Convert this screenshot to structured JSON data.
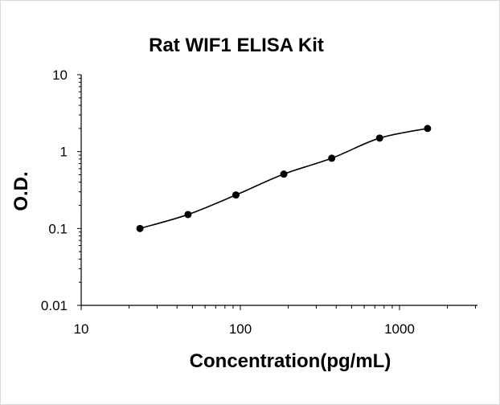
{
  "chart_data": {
    "type": "scatter",
    "title": "Rat WIF1  ELISA Kit",
    "xlabel": "Concentration(pg/mL)",
    "ylabel": "O.D.",
    "xscale": "log",
    "yscale": "log",
    "xlim": [
      10,
      2000
    ],
    "ylim": [
      0.01,
      10
    ],
    "x_tick_labels": [
      "10",
      "100",
      "1000"
    ],
    "y_tick_labels": [
      "10",
      "1",
      "0.1",
      "0.01"
    ],
    "grid": false,
    "legend": "none",
    "series": [
      {
        "x": [
          23.4,
          46.9,
          93.8,
          187.5,
          375,
          750,
          1500
        ],
        "y": [
          0.1,
          0.152,
          0.273,
          0.51,
          0.82,
          1.5,
          2.0
        ]
      }
    ],
    "trendline": "smooth curve through points",
    "colors": {
      "marker": "#000000",
      "line": "#000000",
      "axis": "#000000"
    }
  }
}
